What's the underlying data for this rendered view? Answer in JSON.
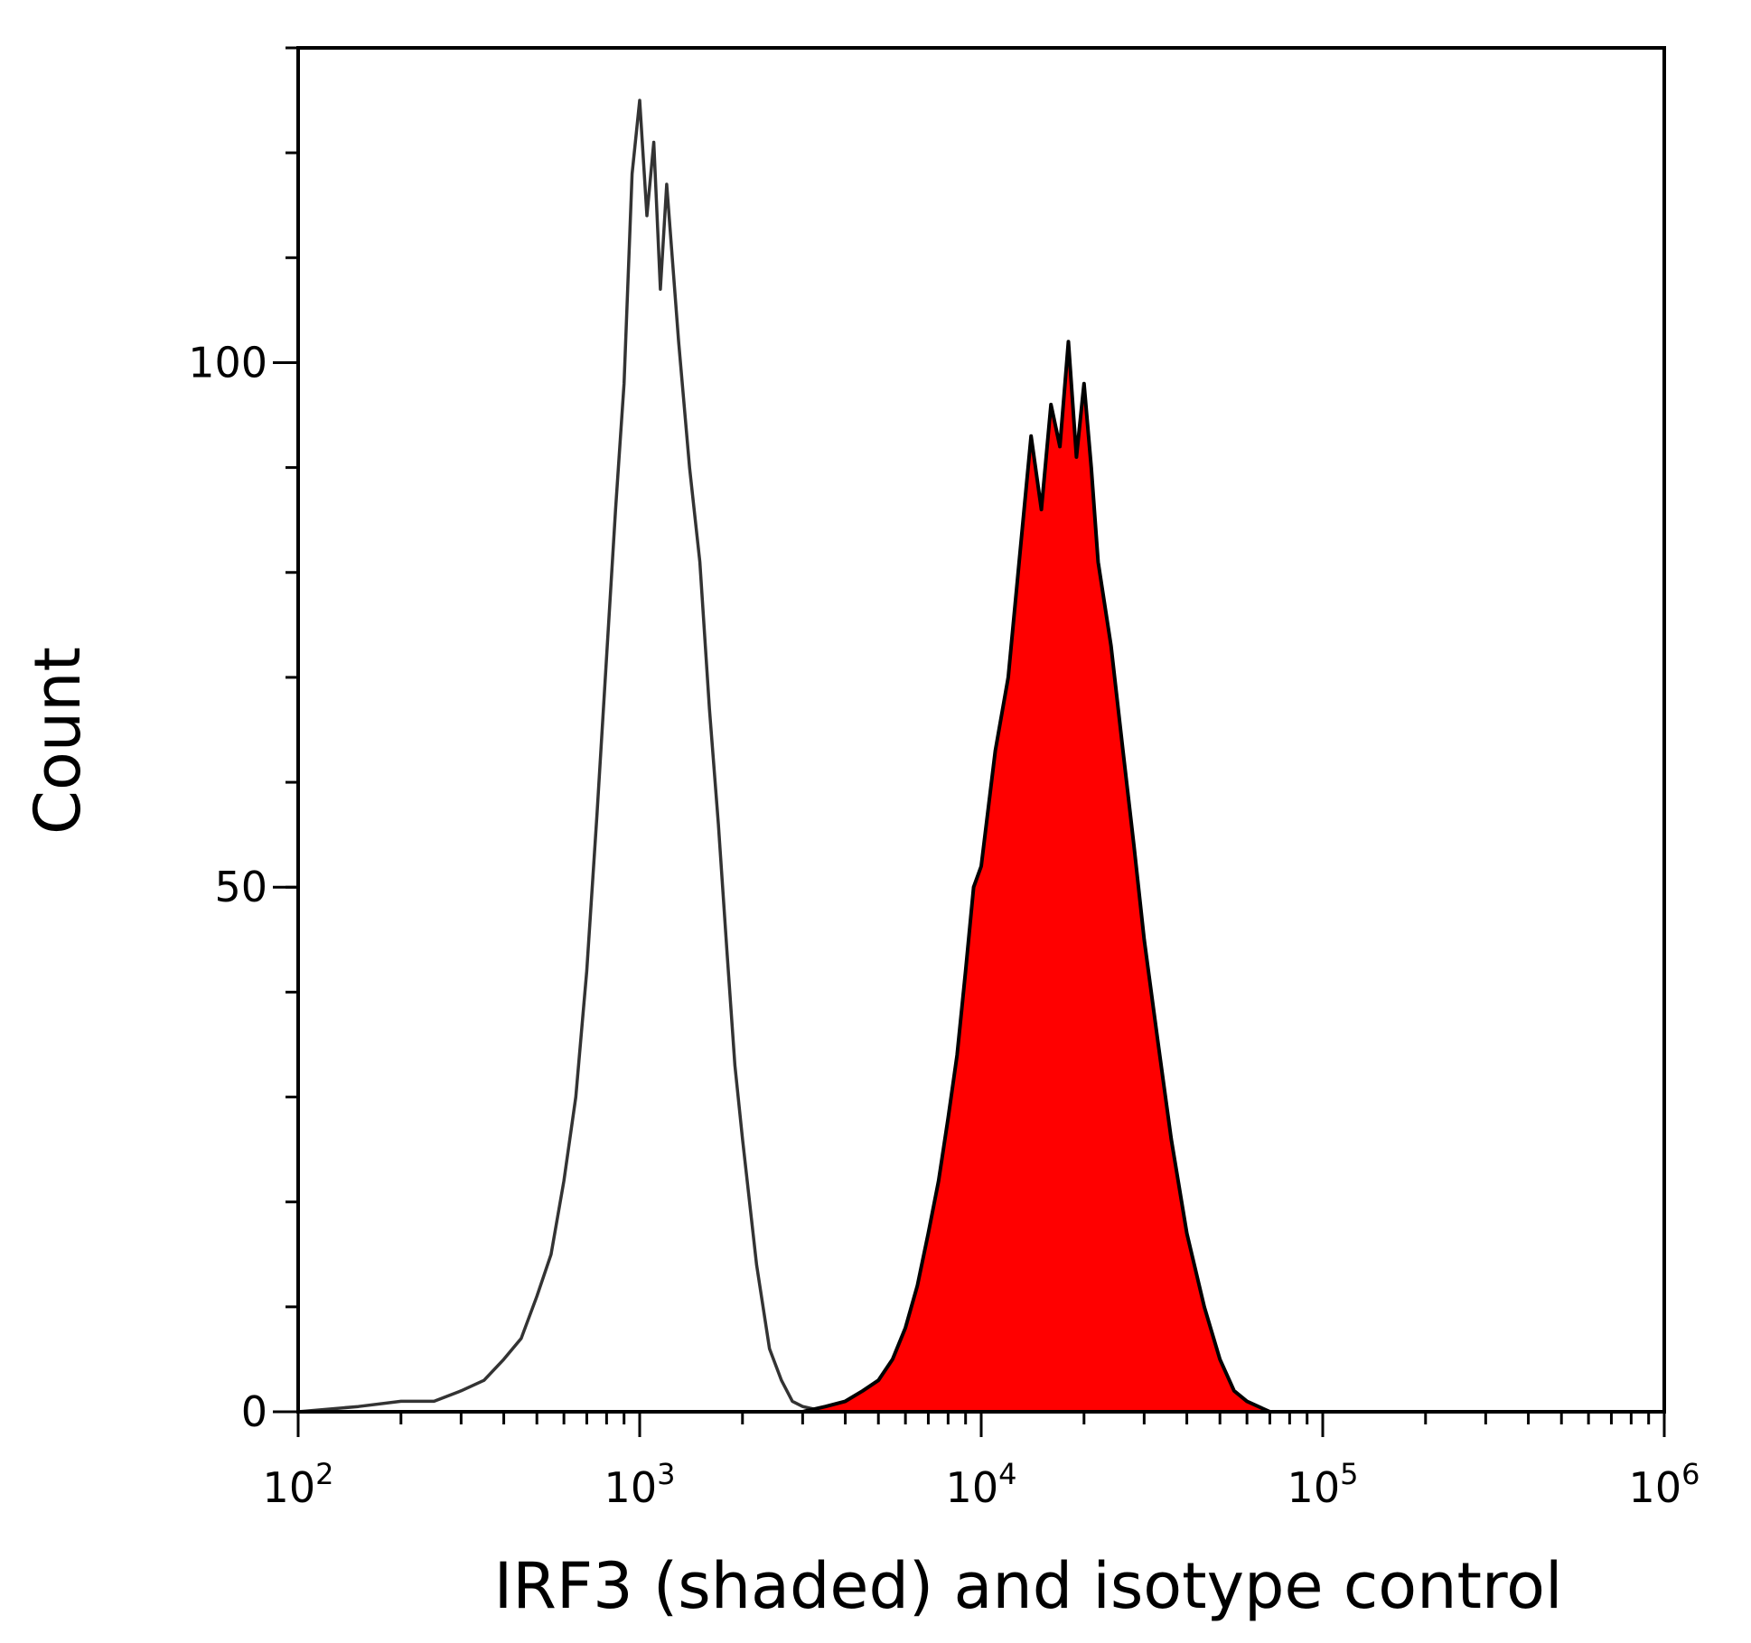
{
  "chart_data": {
    "type": "area",
    "xscale": "log",
    "xlim": [
      100,
      1000000
    ],
    "ylim": [
      0,
      130
    ],
    "xlabel": "IRF3 (shaded) and isotype control",
    "ylabel": "Count",
    "grid": false,
    "legend": "none",
    "x_ticks": [
      {
        "value": 100,
        "base": "10",
        "exp": "2"
      },
      {
        "value": 1000,
        "base": "10",
        "exp": "3"
      },
      {
        "value": 10000,
        "base": "10",
        "exp": "4"
      },
      {
        "value": 100000,
        "base": "10",
        "exp": "5"
      },
      {
        "value": 1000000,
        "base": "10",
        "exp": "6"
      }
    ],
    "y_ticks": [
      {
        "value": 0,
        "label": "0"
      },
      {
        "value": 50,
        "label": "50"
      },
      {
        "value": 100,
        "label": "100"
      }
    ],
    "series": [
      {
        "style": "outline",
        "color": "#333333",
        "x": [
          100,
          150,
          200,
          250,
          300,
          350,
          400,
          450,
          500,
          550,
          600,
          650,
          700,
          750,
          800,
          850,
          900,
          950,
          1000,
          1050,
          1100,
          1150,
          1200,
          1300,
          1400,
          1500,
          1600,
          1700,
          1800,
          1900,
          2000,
          2200,
          2400,
          2600,
          2800,
          3000,
          3500,
          4000,
          5000,
          10000,
          100000
        ],
        "y": [
          0,
          0.5,
          1,
          1,
          2,
          3,
          5,
          7,
          11,
          15,
          22,
          30,
          42,
          57,
          72,
          86,
          98,
          118,
          125,
          114,
          121,
          107,
          117,
          102,
          90,
          81,
          67,
          56,
          44,
          33,
          26,
          14,
          6,
          3,
          1,
          0.5,
          0,
          0,
          0,
          0,
          0
        ]
      },
      {
        "style": "filled",
        "color": "#ff0000",
        "x": [
          100,
          1000,
          3000,
          3500,
          4000,
          4500,
          5000,
          5500,
          6000,
          6500,
          7000,
          7500,
          8000,
          8500,
          9000,
          9500,
          10000,
          11000,
          12000,
          13000,
          14000,
          15000,
          16000,
          17000,
          18000,
          19000,
          20000,
          21000,
          22000,
          24000,
          26000,
          28000,
          30000,
          33000,
          36000,
          40000,
          45000,
          50000,
          55000,
          60000,
          70000,
          100000,
          1000000
        ],
        "y": [
          0,
          0,
          0,
          0.5,
          1,
          2,
          3,
          5,
          8,
          12,
          17,
          22,
          28,
          34,
          42,
          50,
          52,
          63,
          70,
          82,
          93,
          86,
          96,
          92,
          102,
          91,
          98,
          90,
          81,
          73,
          63,
          54,
          45,
          35,
          26,
          17,
          10,
          5,
          2,
          1,
          0,
          0,
          0
        ]
      }
    ]
  }
}
